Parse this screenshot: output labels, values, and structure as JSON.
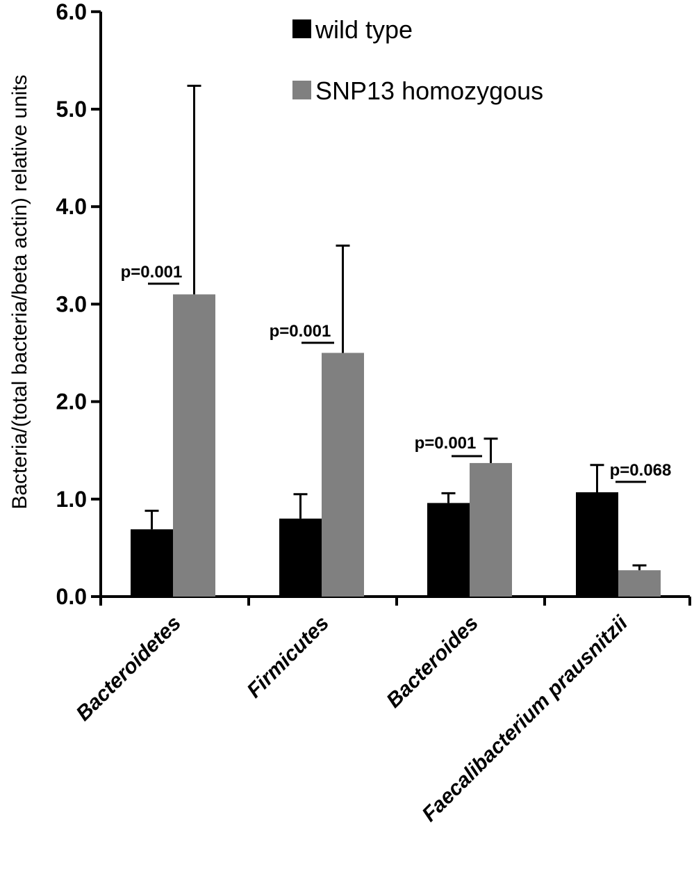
{
  "chart_data": {
    "type": "bar",
    "title": "",
    "xlabel": "",
    "ylabel": "Bacteria/(total bacteria/beta actin) relative units",
    "ylim": [
      0,
      6
    ],
    "yticks": [
      "0.0",
      "1.0",
      "2.0",
      "3.0",
      "4.0",
      "5.0",
      "6.0"
    ],
    "categories": [
      "Bacteroidetes",
      "Firmicutes",
      "Bacteroides",
      "Faecalibacterium prausnitzii"
    ],
    "series": [
      {
        "name": "wild type",
        "color": "#000000",
        "values": [
          0.69,
          0.8,
          0.96,
          1.07
        ],
        "errors": [
          0.19,
          0.25,
          0.1,
          0.28
        ]
      },
      {
        "name": "SNP13 homozygous",
        "color": "#808080",
        "values": [
          3.1,
          2.5,
          1.37,
          0.27
        ],
        "errors": [
          2.14,
          1.1,
          0.25,
          0.05
        ]
      }
    ],
    "annotations": [
      "p=0.001",
      "p=0.001",
      "p=0.001",
      "p=0.068"
    ],
    "legend_position": "top-right",
    "grid": false
  }
}
